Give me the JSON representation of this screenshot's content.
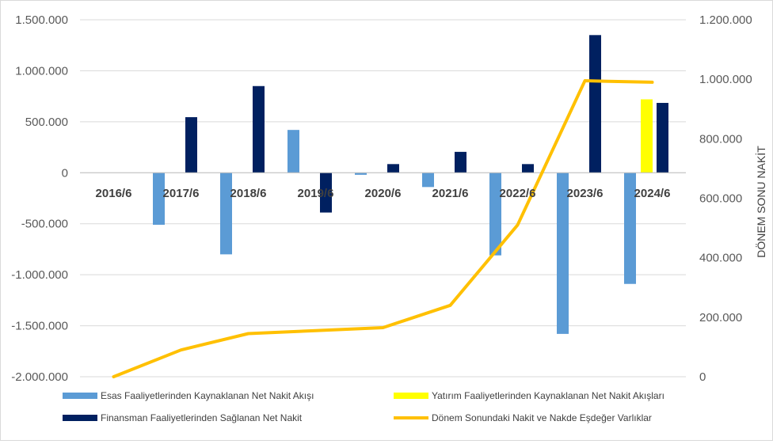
{
  "chart_data": {
    "type": "bar",
    "title": "",
    "xlabel": "",
    "ylabel": "",
    "y2label": "DÖNEM SONU NAKİT",
    "categories": [
      "2016/6",
      "2017/6",
      "2018/6",
      "2019/6",
      "2020/6",
      "2021/6",
      "2022/6",
      "2023/6",
      "2024/6"
    ],
    "ylim": [
      -2000000,
      1500000
    ],
    "y2lim": [
      0,
      1200000
    ],
    "yticks": [
      "1.500.000",
      "1.000.000",
      "500.000",
      "0",
      "-500.000",
      "-1.000.000",
      "-1.500.000",
      "-2.000.000"
    ],
    "y2ticks": [
      "1.200.000",
      "1.000.000",
      "800.000",
      "600.000",
      "400.000",
      "200.000",
      "0"
    ],
    "grid": true,
    "legend_position": "bottom",
    "series": [
      {
        "name": "Esas Faaliyetlerinden Kaynaklanan Net Nakit Akışı",
        "kind": "bar",
        "axis": "left",
        "color": "#5b9bd5",
        "values": [
          0,
          -510000,
          -800000,
          420000,
          -20000,
          -140000,
          -810000,
          -1580000,
          -1090000
        ]
      },
      {
        "name": "Yatırım Faaliyetlerinden Kaynaklanan Net Nakit Akışları",
        "kind": "bar",
        "axis": "left",
        "color": "#ffff00",
        "values": [
          0,
          0,
          0,
          0,
          0,
          0,
          0,
          0,
          720000
        ]
      },
      {
        "name": "Finansman Faaliyetlerinden Sağlanan Net Nakit",
        "kind": "bar",
        "axis": "left",
        "color": "#002060",
        "values": [
          0,
          545000,
          850000,
          -390000,
          85000,
          205000,
          85000,
          1350000,
          685000
        ]
      },
      {
        "name": "Dönem Sonundaki Nakit ve Nakde Eşdeğer Varlıklar",
        "kind": "line",
        "axis": "right",
        "color": "#ffc000",
        "values": [
          0,
          90000,
          145000,
          155000,
          165000,
          240000,
          510000,
          995000,
          990000
        ]
      }
    ]
  }
}
